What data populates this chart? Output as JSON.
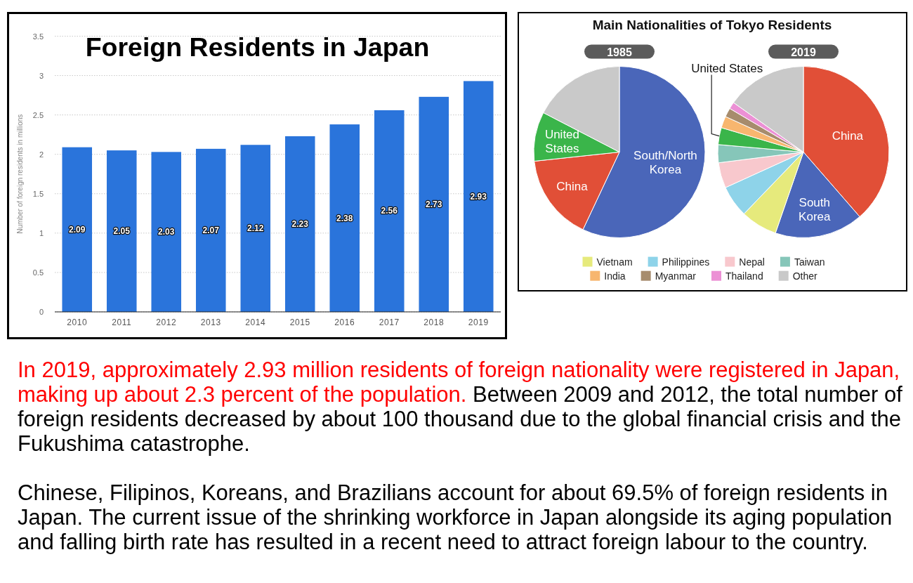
{
  "chart_data": [
    {
      "type": "bar",
      "title": "Foreign Residents in Japan",
      "ylabel": "Number of foreign residents in millions",
      "categories": [
        "2010",
        "2011",
        "2012",
        "2013",
        "2014",
        "2015",
        "2016",
        "2017",
        "2018",
        "2019"
      ],
      "values": [
        2.09,
        2.05,
        2.03,
        2.07,
        2.12,
        2.23,
        2.38,
        2.56,
        2.73,
        2.93
      ],
      "color": "#2a74db",
      "ylim": [
        0,
        3.5
      ],
      "yticks": [
        0,
        0.5,
        1,
        1.5,
        2,
        2.5,
        3,
        3.5
      ],
      "grid": "y",
      "data_labels": true
    },
    {
      "type": "pie",
      "title": "Main Nationalities of Tokyo Residents",
      "subtitle": "1985",
      "categories": [
        "South/North Korea",
        "China",
        "United States",
        null
      ],
      "values": [
        57,
        16.3,
        9.3,
        17.4
      ],
      "colors": [
        "#4a66b9",
        "#e14f37",
        "#3ab54a",
        "#c9c9c9"
      ]
    },
    {
      "type": "pie",
      "subtitle": "2019",
      "categories": [
        "China",
        "South Korea",
        "Vietnam",
        "Philippines",
        "Nepal",
        "Taiwan",
        "United States",
        "India",
        "Myanmar",
        "Thailand",
        "Other"
      ],
      "values": [
        38.6,
        16.7,
        6.9,
        6.0,
        4.8,
        3.4,
        3.2,
        2.2,
        1.7,
        1.3,
        15.2
      ],
      "colors": [
        "#e14f37",
        "#4a66b9",
        "#e6ea7c",
        "#8ed3e9",
        "#f8c8cd",
        "#86c6b9",
        "#3ab54a",
        "#f7b66f",
        "#a78c6d",
        "#ec90d5",
        "#c9c9c9"
      ],
      "legend": "bottom"
    },
    {
      "type": "other",
      "annotations": [
        "In 2019, approximately 2.93 million residents of foreign nationality were registered in Japan, making up about 2.3 percent of the population. Between 2009 and 2012, the total number of foreign residents decreased by about 100 thousand due to the global financial crisis and the Fukushima catastrophe.",
        "Chinese, Filipinos, Koreans, and Brazilians account for about 69.5% of foreign residents in Japan. The current issue of the shrinking workforce in Japan alongside its aging population and falling birth rate has resulted in a recent need to attract foreign labour to the country."
      ]
    }
  ]
}
